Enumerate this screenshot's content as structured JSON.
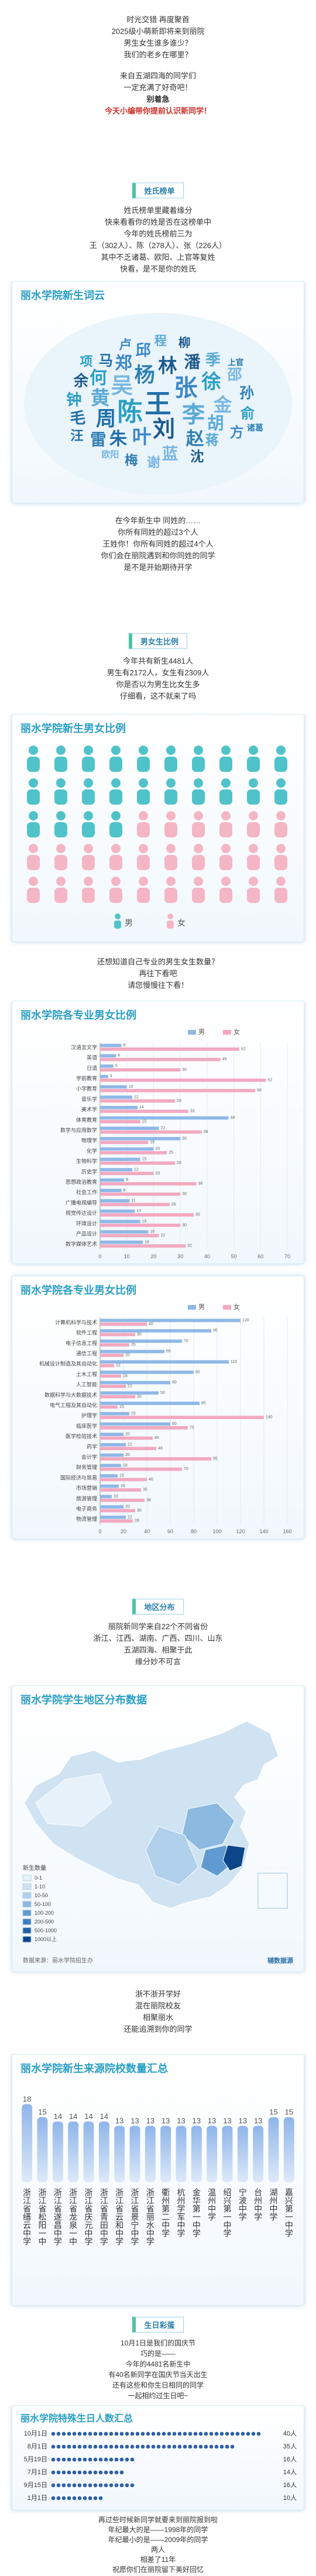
{
  "intro": {
    "lines": [
      "时光交错 再度聚首",
      "2025级小萌新即将来到丽院",
      "男生女生谁多谁少？",
      "我们的老乡在哪里？",
      "来自五湖四海的同学们",
      "一定充满了好奇吧！",
      "别着急",
      "今天小编带你提前认识新同学！"
    ]
  },
  "surnames": {
    "tag": "姓氏榜单",
    "lines": [
      "姓氏榜单里藏着缘分",
      "快来看看你的姓是否在这榜单中",
      "今年的姓氏榜前三为",
      "王（302人）、陈（278人）、张（226人）",
      "其中不乏诸葛、欧阳、上官等复姓",
      "快看，是不是你的姓氏"
    ],
    "cloud": {
      "type": "wordcloud",
      "title": "丽水学院新生词云",
      "words": [
        {
          "text": "王",
          "value": 302
        },
        {
          "text": "陈",
          "value": 278
        },
        {
          "text": "张",
          "value": 226
        },
        {
          "text": "李",
          "value": 210
        },
        {
          "text": "刘",
          "value": 198
        },
        {
          "text": "吴",
          "value": 185
        },
        {
          "text": "杨",
          "value": 160
        },
        {
          "text": "周",
          "value": 150
        },
        {
          "text": "徐",
          "value": 140
        },
        {
          "text": "叶",
          "value": 135
        },
        {
          "text": "黄",
          "value": 130
        },
        {
          "text": "林",
          "value": 125
        },
        {
          "text": "金",
          "value": 118
        },
        {
          "text": "赵",
          "value": 110
        },
        {
          "text": "朱",
          "value": 105
        },
        {
          "text": "何",
          "value": 100
        },
        {
          "text": "郑",
          "value": 95
        },
        {
          "text": "胡",
          "value": 90
        },
        {
          "text": "潘",
          "value": 85
        },
        {
          "text": "蓝",
          "value": 80
        },
        {
          "text": "雷",
          "value": 78
        },
        {
          "text": "毛",
          "value": 75
        },
        {
          "text": "钟",
          "value": 70
        },
        {
          "text": "邱",
          "value": 68
        },
        {
          "text": "季",
          "value": 65
        },
        {
          "text": "余",
          "value": 62
        },
        {
          "text": "邵",
          "value": 60
        },
        {
          "text": "孙",
          "value": 58
        },
        {
          "text": "马",
          "value": 55
        },
        {
          "text": "俞",
          "value": 52
        },
        {
          "text": "方",
          "value": 50
        },
        {
          "text": "蒋",
          "value": 48
        },
        {
          "text": "沈",
          "value": 46
        },
        {
          "text": "谢",
          "value": 44
        },
        {
          "text": "梅",
          "value": 42
        },
        {
          "text": "汪",
          "value": 40
        },
        {
          "text": "项",
          "value": 38
        },
        {
          "text": "卢",
          "value": 36
        },
        {
          "text": "程",
          "value": 34
        },
        {
          "text": "柳",
          "value": 32
        },
        {
          "text": "欧阳",
          "value": 8
        },
        {
          "text": "诸葛",
          "value": 6
        },
        {
          "text": "上官",
          "value": 5
        }
      ]
    },
    "after": [
      "在今年新生中 同姓的……",
      "你所有同姓的超过3个人",
      "王姓你！你所有同姓的超过4个人",
      "你们会在丽院遇到和你同姓的同学",
      "是不是开始期待开学"
    ]
  },
  "gender": {
    "tag": "男女生比例",
    "lines": [
      "今年共有新生4481人",
      "男生有2172人，女生有2309人",
      "你是否以为男生比女生多",
      "仔细看，这不就来了吗"
    ],
    "chart": {
      "type": "waffle",
      "title": "丽水学院新生男女比例",
      "series": [
        {
          "name": "男",
          "color": "#4fc3c9",
          "value": 2172
        },
        {
          "name": "女",
          "color": "#f4b6c4",
          "value": 2309
        }
      ]
    },
    "after": [
      "还想知道自己专业的男生女生数量？",
      "再往下看吧",
      "请您慢慢往下看！"
    ]
  },
  "majors": [
    {
      "type": "bar",
      "horizontal": true,
      "title": "丽水学院各专业男女比例",
      "categories": [
        "汉语言文学",
        "英语",
        "日语",
        "学前教育",
        "小学教育",
        "音乐学",
        "美术学",
        "体育教育",
        "数学与应用数学",
        "物理学",
        "化学",
        "生物科学",
        "历史学",
        "思想政治教育",
        "社会工作",
        "广播电视编导",
        "视觉传达设计",
        "环境设计",
        "产品设计",
        "数字媒体艺术"
      ],
      "series": [
        {
          "name": "男",
          "color": "#8fb8e6",
          "values": [
            8,
            6,
            5,
            3,
            10,
            12,
            14,
            48,
            22,
            30,
            20,
            15,
            12,
            9,
            8,
            11,
            13,
            15,
            18,
            16
          ]
        },
        {
          "name": "女",
          "color": "#f2a9c0",
          "values": [
            52,
            45,
            30,
            62,
            58,
            28,
            33,
            15,
            38,
            18,
            25,
            28,
            20,
            36,
            30,
            26,
            35,
            30,
            22,
            32
          ]
        }
      ],
      "xlim": [
        0,
        70
      ],
      "xticks": [
        0,
        10,
        20,
        30,
        40,
        50,
        60,
        70
      ],
      "grid": true
    },
    {
      "type": "bar",
      "horizontal": true,
      "title": "丽水学院各专业男女比例",
      "categories": [
        "计算机科学与技术",
        "软件工程",
        "电子信息工程",
        "通信工程",
        "机械设计制造及其自动化",
        "土木工程",
        "人工智能",
        "数据科学与大数据技术",
        "电气工程及其自动化",
        "护理学",
        "临床医学",
        "医学检验技术",
        "药学",
        "会计学",
        "财务管理",
        "国际经济与贸易",
        "市场营销",
        "旅游管理",
        "电子商务",
        "物流管理"
      ],
      "series": [
        {
          "name": "男",
          "color": "#8fb8e6",
          "values": [
            120,
            95,
            70,
            55,
            110,
            80,
            60,
            50,
            85,
            25,
            60,
            20,
            22,
            20,
            18,
            15,
            16,
            10,
            20,
            22
          ]
        },
        {
          "name": "女",
          "color": "#f2a9c0",
          "values": [
            40,
            30,
            25,
            20,
            12,
            18,
            22,
            30,
            15,
            140,
            75,
            45,
            48,
            95,
            70,
            40,
            35,
            38,
            30,
            28
          ]
        }
      ],
      "xlim": [
        0,
        160
      ],
      "xticks": [
        0,
        20,
        40,
        60,
        80,
        100,
        120,
        140,
        160
      ],
      "grid": true
    }
  ],
  "region": {
    "tag": "地区分布",
    "lines": [
      "丽院新同学来自22个不同省份",
      "浙江、江西、湖南、广西、四川、山东",
      "五湖四海、相聚于此",
      "缘分妙不可言"
    ],
    "map": {
      "type": "map",
      "title": "丽水学院学生地区分布数据",
      "legend_title": "新生数量",
      "bins": [
        {
          "label": "0-1",
          "color": "#e6f1fa"
        },
        {
          "label": "1-10",
          "color": "#cfe3f2"
        },
        {
          "label": "10-50",
          "color": "#b0d0eb"
        },
        {
          "label": "50-100",
          "color": "#8bb9e0"
        },
        {
          "label": "100-200",
          "color": "#5f9bd0"
        },
        {
          "label": "200-500",
          "color": "#3a7fbf"
        },
        {
          "label": "500-1000",
          "color": "#1f62a8"
        },
        {
          "label": "1000以上",
          "color": "#0d4589"
        }
      ],
      "source": "数据来源：丽水学院招生办",
      "brand": "辅数据源"
    },
    "after": [
      "浙不浙开学好",
      "混在丽院校友",
      "相聚丽水",
      "还能追溯到你的同学"
    ]
  },
  "schools": {
    "type": "bar",
    "title": "丽水学院新生来源院校数量汇总",
    "categories": [
      "浙江省缙云中学",
      "浙江省松阳一中",
      "浙江省遂昌中学",
      "浙江省龙泉一中",
      "浙江省庆元中学",
      "浙江省青田中学",
      "浙江省云和中学",
      "浙江省景宁中学",
      "浙江省丽水中学",
      "衢州第二中学",
      "杭州学军中学",
      "金华第一中学",
      "温州中学",
      "绍兴第一中学",
      "宁波中学",
      "台州中学",
      "湖州中学",
      "嘉兴第一中学"
    ],
    "values": [
      18,
      15,
      14,
      14,
      14,
      14,
      13,
      13,
      13,
      13,
      13,
      13,
      13,
      13,
      13,
      13,
      15,
      15
    ],
    "ylim": [
      0,
      20
    ],
    "color": "#8fb5ea"
  },
  "birthday": {
    "tag": "生日彩蛋",
    "lines": [
      "10月1日是我们的国庆节",
      "巧的是——",
      "今年的4481名新生中",
      "有40名新同学在国庆节当天出生",
      "还有这些和你生日相同的同学",
      "一起相约过生日吧~"
    ],
    "chart": {
      "type": "pictogram",
      "title": "丽水学院特殊生日人数汇总",
      "categories": [
        "10月1日",
        "8月1日",
        "5月19日",
        "7月1日",
        "9月15日",
        "1月1日"
      ],
      "values": [
        40,
        35,
        16,
        14,
        16,
        10
      ],
      "value_labels": [
        "40人",
        "35人",
        "16人",
        "14人",
        "16人",
        "10人"
      ],
      "color": "#2f5fa8"
    },
    "end": [
      "再过些时候新同学就要来到丽院报到啦",
      "年纪最大的是——1998年的同学",
      "年纪最小的是——2009年的同学",
      "两人",
      "相差了11年",
      "祝愿你们在丽院留下美好回忆"
    ]
  }
}
